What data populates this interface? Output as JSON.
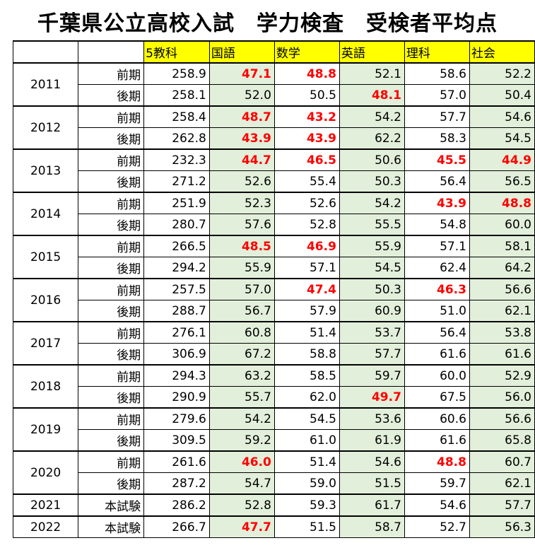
{
  "title": "千葉県公立高校入試　学力検査　受検者平均点",
  "table": {
    "header": [
      "5教科",
      "国語",
      "数学",
      "英語",
      "理科",
      "社会"
    ],
    "groups": [
      {
        "year": "2011",
        "rows": [
          {
            "term": "前期",
            "values": [
              "258.9",
              "47.1",
              "48.8",
              "52.1",
              "58.6",
              "52.2"
            ]
          },
          {
            "term": "後期",
            "values": [
              "258.1",
              "52.0",
              "50.5",
              "48.1",
              "57.0",
              "50.4"
            ]
          }
        ]
      },
      {
        "year": "2012",
        "rows": [
          {
            "term": "前期",
            "values": [
              "258.4",
              "48.7",
              "43.2",
              "54.2",
              "57.7",
              "54.6"
            ]
          },
          {
            "term": "後期",
            "values": [
              "262.8",
              "43.9",
              "43.9",
              "62.2",
              "58.3",
              "54.5"
            ]
          }
        ]
      },
      {
        "year": "2013",
        "rows": [
          {
            "term": "前期",
            "values": [
              "232.3",
              "44.7",
              "46.5",
              "50.6",
              "45.5",
              "44.9"
            ]
          },
          {
            "term": "後期",
            "values": [
              "271.2",
              "52.6",
              "55.4",
              "50.3",
              "56.4",
              "56.5"
            ]
          }
        ]
      },
      {
        "year": "2014",
        "rows": [
          {
            "term": "前期",
            "values": [
              "251.9",
              "52.3",
              "52.6",
              "54.2",
              "43.9",
              "48.8"
            ]
          },
          {
            "term": "後期",
            "values": [
              "280.7",
              "57.6",
              "52.8",
              "55.5",
              "54.8",
              "60.0"
            ]
          }
        ]
      },
      {
        "year": "2015",
        "rows": [
          {
            "term": "前期",
            "values": [
              "266.5",
              "48.5",
              "46.9",
              "55.9",
              "57.1",
              "58.1"
            ]
          },
          {
            "term": "後期",
            "values": [
              "294.2",
              "55.9",
              "57.1",
              "54.5",
              "62.4",
              "64.2"
            ]
          }
        ]
      },
      {
        "year": "2016",
        "rows": [
          {
            "term": "前期",
            "values": [
              "257.5",
              "57.0",
              "47.4",
              "50.3",
              "46.3",
              "56.6"
            ]
          },
          {
            "term": "後期",
            "values": [
              "288.7",
              "56.7",
              "57.9",
              "60.9",
              "51.0",
              "62.1"
            ]
          }
        ]
      },
      {
        "year": "2017",
        "rows": [
          {
            "term": "前期",
            "values": [
              "276.1",
              "60.8",
              "51.4",
              "53.7",
              "56.4",
              "53.8"
            ]
          },
          {
            "term": "後期",
            "values": [
              "306.9",
              "67.2",
              "58.8",
              "57.7",
              "61.6",
              "61.6"
            ]
          }
        ]
      },
      {
        "year": "2018",
        "rows": [
          {
            "term": "前期",
            "values": [
              "294.3",
              "63.2",
              "58.5",
              "59.7",
              "60.0",
              "52.9"
            ]
          },
          {
            "term": "後期",
            "values": [
              "290.9",
              "55.7",
              "62.0",
              "49.7",
              "67.5",
              "56.0"
            ]
          }
        ]
      },
      {
        "year": "2019",
        "rows": [
          {
            "term": "前期",
            "values": [
              "279.6",
              "54.2",
              "54.5",
              "53.6",
              "60.6",
              "56.6"
            ]
          },
          {
            "term": "後期",
            "values": [
              "309.5",
              "59.2",
              "61.0",
              "61.9",
              "61.6",
              "65.8"
            ]
          }
        ]
      },
      {
        "year": "2020",
        "rows": [
          {
            "term": "前期",
            "values": [
              "261.6",
              "46.0",
              "51.4",
              "54.6",
              "48.8",
              "60.7"
            ]
          },
          {
            "term": "後期",
            "values": [
              "287.2",
              "54.7",
              "59.0",
              "51.5",
              "59.7",
              "62.1"
            ]
          }
        ]
      },
      {
        "year": "2021",
        "rows": [
          {
            "term": "本試験",
            "values": [
              "286.2",
              "52.8",
              "59.3",
              "61.7",
              "54.6",
              "57.7"
            ]
          }
        ]
      },
      {
        "year": "2022",
        "rows": [
          {
            "term": "本試験",
            "values": [
              "266.7",
              "47.7",
              "51.5",
              "58.7",
              "52.7",
              "56.3"
            ]
          }
        ]
      }
    ]
  }
}
